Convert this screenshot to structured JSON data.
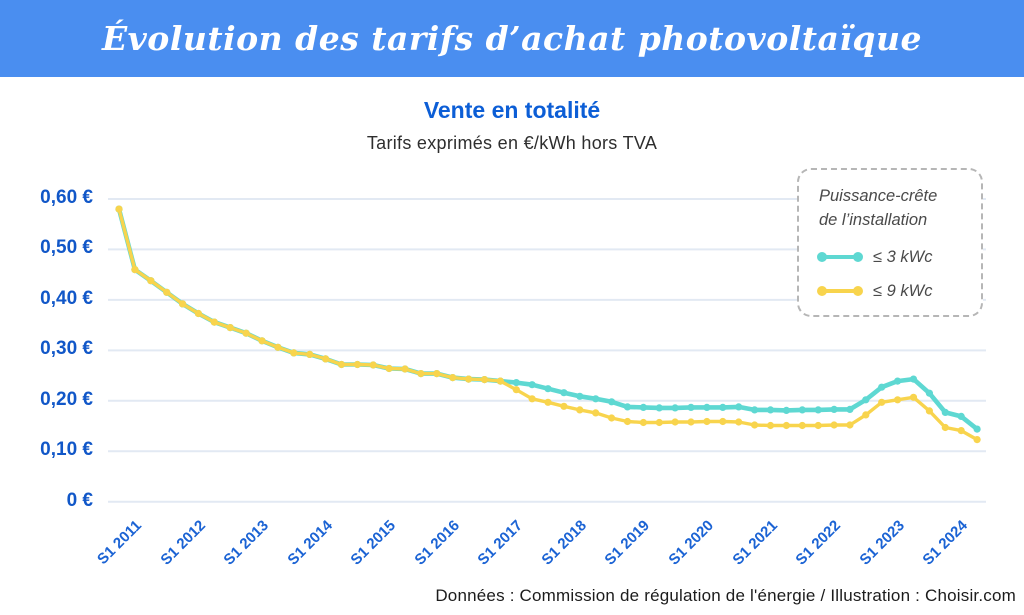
{
  "banner": {
    "title": "Évolution des tarifs d’achat photovoltaïque",
    "background_color": "#4a8ef0"
  },
  "chart": {
    "title": "Vente en totalité",
    "subtitle": "Tarifs exprimés en €/kWh hors TVA"
  },
  "legend": {
    "title_line1": "Puissance-crête",
    "title_line2": "de l’installation",
    "entries": [
      {
        "label": "≤ 3 kWc",
        "color": "#5ed8d2"
      },
      {
        "label": "≤ 9 kWc",
        "color": "#f8d44d"
      }
    ]
  },
  "footer": {
    "text": "Données : Commission de régulation de l'énergie / Illustration : Choisir.com"
  },
  "chart_data": {
    "type": "line",
    "title": "Vente en totalité",
    "subtitle": "Tarifs exprimés en €/kWh hors TVA",
    "unit": "€/kWh hors TVA",
    "x_start": "S1 2011",
    "x_end": "S2 2024",
    "points_per_year": 4,
    "x_tick_labels": [
      "S1 2011",
      "S1 2012",
      "S1 2013",
      "S1 2014",
      "S1 2015",
      "S1 2016",
      "S1 2017",
      "S1 2018",
      "S1 2019",
      "S1 2020",
      "S1 2021",
      "S1 2022",
      "S1 2023",
      "S1 2024"
    ],
    "y_ticks": [
      0.6,
      0.5,
      0.4,
      0.3,
      0.2,
      0.1,
      0
    ],
    "y_tick_labels": [
      "0,60 €",
      "0,50 €",
      "0,40 €",
      "0,30 €",
      "0,20 €",
      "0,10 €",
      "0 €"
    ],
    "ylim": [
      0,
      0.6
    ],
    "grid": "horizontal",
    "legend_position": "top-right",
    "series": [
      {
        "name": "≤ 3 kWc",
        "color": "#5ed8d2",
        "values": [
          0.58,
          0.46,
          0.438,
          0.415,
          0.392,
          0.373,
          0.356,
          0.345,
          0.334,
          0.319,
          0.306,
          0.295,
          0.292,
          0.283,
          0.272,
          0.272,
          0.271,
          0.264,
          0.263,
          0.254,
          0.254,
          0.246,
          0.243,
          0.242,
          0.239,
          0.236,
          0.232,
          0.224,
          0.216,
          0.209,
          0.204,
          0.198,
          0.188,
          0.187,
          0.186,
          0.186,
          0.187,
          0.187,
          0.187,
          0.188,
          0.182,
          0.182,
          0.181,
          0.182,
          0.182,
          0.183,
          0.183,
          0.202,
          0.227,
          0.239,
          0.243,
          0.215,
          0.177,
          0.169,
          0.144
        ]
      },
      {
        "name": "≤ 9 kWc",
        "color": "#f8d44d",
        "values": [
          0.58,
          0.46,
          0.438,
          0.415,
          0.392,
          0.373,
          0.356,
          0.345,
          0.334,
          0.319,
          0.306,
          0.295,
          0.292,
          0.283,
          0.272,
          0.272,
          0.271,
          0.264,
          0.263,
          0.254,
          0.254,
          0.246,
          0.243,
          0.242,
          0.239,
          0.222,
          0.204,
          0.197,
          0.189,
          0.182,
          0.176,
          0.166,
          0.159,
          0.157,
          0.157,
          0.158,
          0.158,
          0.159,
          0.159,
          0.158,
          0.152,
          0.151,
          0.151,
          0.151,
          0.151,
          0.152,
          0.152,
          0.172,
          0.197,
          0.202,
          0.207,
          0.18,
          0.147,
          0.141,
          0.123
        ]
      }
    ]
  }
}
